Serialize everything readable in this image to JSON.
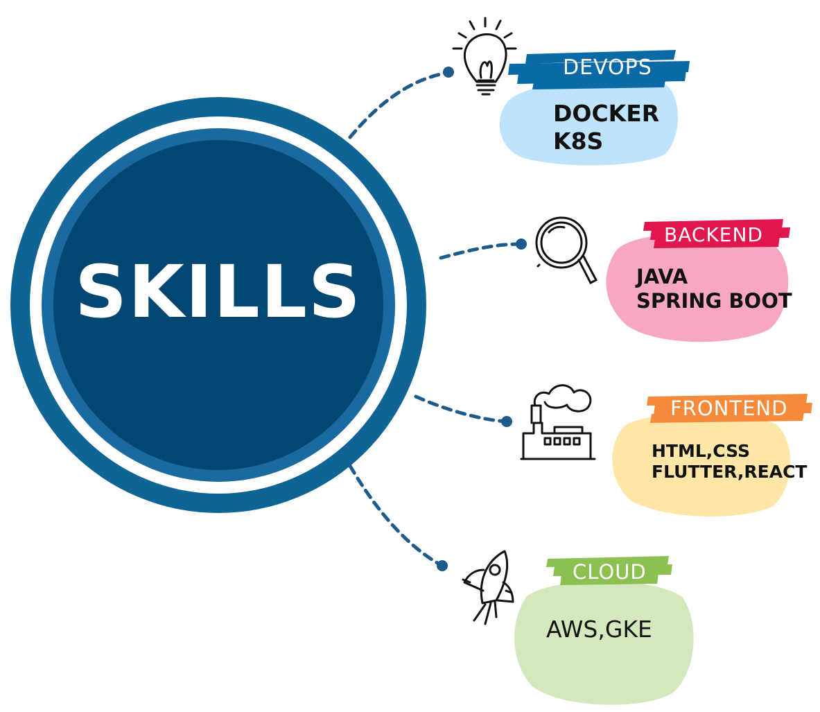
{
  "center": {
    "title": "SKILLS"
  },
  "colors": {
    "ring_outer": "#0f6496",
    "ring_inner": "#1a6aa0",
    "core": "#024672",
    "connector": "#1d5b8a",
    "devops_band": "#0a6aa6",
    "devops_blob": "#bde4fb",
    "backend_band": "#e0174f",
    "backend_blob": "#f8a7c3",
    "frontend_band": "#f58a3a",
    "frontend_blob": "#fde6a6",
    "cloud_band": "#8cc152",
    "cloud_blob": "#d5e8bd"
  },
  "skills": [
    {
      "label": "DEVOPS",
      "items": [
        "DOCKER",
        "K8S"
      ],
      "icon": "lightbulb-icon"
    },
    {
      "label": "BACKEND",
      "items": [
        "JAVA",
        "SPRING BOOT"
      ],
      "icon": "magnifier-icon"
    },
    {
      "label": "FRONTEND",
      "items": [
        "HTML,CSS",
        "FLUTTER,REACT"
      ],
      "icon": "factory-icon"
    },
    {
      "label": "CLOUD",
      "items": [
        "AWS,GKE"
      ],
      "icon": "rocket-icon"
    }
  ]
}
